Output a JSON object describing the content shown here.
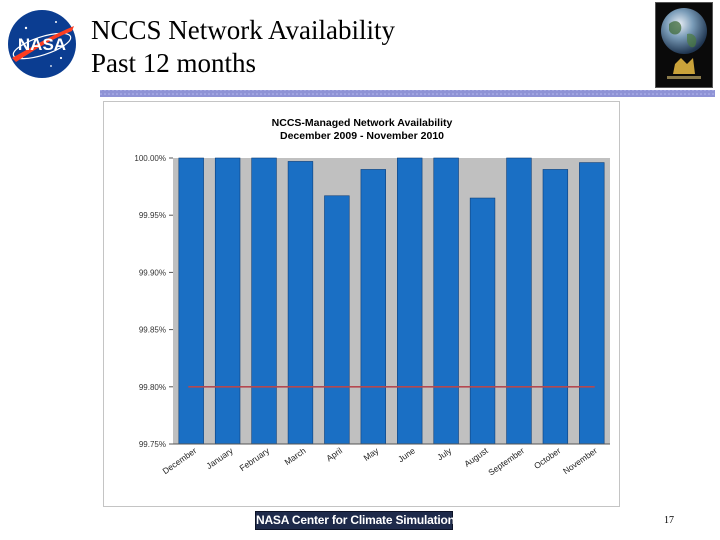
{
  "slide": {
    "title_line1": "NCCS Network Availability",
    "title_line2": "Past 12 months",
    "footer": "NASA Center for Climate Simulation",
    "page_number": "17",
    "logo_text": "NASA"
  },
  "colors": {
    "bar": "#1a6fc4",
    "bar_edge": "#0d3f7a",
    "plot_bg": "#c0c0c0",
    "target_line": "#b5484f",
    "header_rule": "#8f93d6",
    "nasa_blue": "#0b3d91",
    "nasa_red": "#fc3d21"
  },
  "chart_data": {
    "type": "bar",
    "title": "NCCS-Managed Network Availability",
    "subtitle": "December 2009 - November 2010",
    "categories": [
      "December",
      "January",
      "February",
      "March",
      "April",
      "May",
      "June",
      "July",
      "August",
      "September",
      "October",
      "November"
    ],
    "values": [
      100.0,
      100.0,
      100.0,
      99.997,
      99.967,
      99.99,
      100.0,
      100.0,
      99.965,
      100.0,
      99.99,
      99.996
    ],
    "value_format": "percent",
    "ylim": [
      99.75,
      100.0
    ],
    "yticks": [
      "99.75%",
      "99.80%",
      "99.85%",
      "99.90%",
      "99.95%",
      "100.00%"
    ],
    "ytick_values": [
      99.75,
      99.8,
      99.85,
      99.9,
      99.95,
      100.0
    ],
    "reference_line": 99.8,
    "grid": false,
    "legend": "none"
  }
}
